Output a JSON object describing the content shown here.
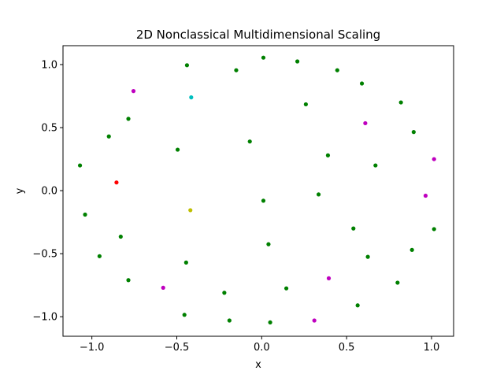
{
  "chart_data": {
    "type": "scatter",
    "title": "2D Nonclassical Multidimensional Scaling",
    "xlabel": "x",
    "ylabel": "y",
    "xlim": [
      -1.17,
      1.13
    ],
    "ylim": [
      -1.155,
      1.15
    ],
    "xticks": [
      -1.0,
      -0.5,
      0.0,
      0.5,
      1.0
    ],
    "xtick_labels": [
      "−1.0",
      "−0.5",
      "0.0",
      "0.5",
      "1.0"
    ],
    "yticks": [
      -1.0,
      -0.5,
      0.0,
      0.5,
      1.0
    ],
    "ytick_labels": [
      "−1.0",
      "−0.5",
      "0.0",
      "0.5",
      "1.0"
    ],
    "grid": false,
    "legend": "none",
    "colors": {
      "g": "#008000",
      "m": "#bf00bf",
      "r": "#ff0000",
      "c": "#00bfbf",
      "y": "#bfbf00"
    },
    "points": [
      {
        "x": 0.01,
        "y": 1.055,
        "color": "g"
      },
      {
        "x": 0.21,
        "y": 1.025,
        "color": "g"
      },
      {
        "x": -0.44,
        "y": 0.995,
        "color": "g"
      },
      {
        "x": -0.15,
        "y": 0.955,
        "color": "g"
      },
      {
        "x": 0.445,
        "y": 0.955,
        "color": "g"
      },
      {
        "x": 0.59,
        "y": 0.85,
        "color": "g"
      },
      {
        "x": -0.755,
        "y": 0.79,
        "color": "m"
      },
      {
        "x": -0.415,
        "y": 0.74,
        "color": "c"
      },
      {
        "x": 0.82,
        "y": 0.7,
        "color": "g"
      },
      {
        "x": 0.26,
        "y": 0.685,
        "color": "g"
      },
      {
        "x": -0.785,
        "y": 0.57,
        "color": "g"
      },
      {
        "x": 0.61,
        "y": 0.535,
        "color": "m"
      },
      {
        "x": 0.895,
        "y": 0.465,
        "color": "g"
      },
      {
        "x": -0.9,
        "y": 0.43,
        "color": "g"
      },
      {
        "x": -0.07,
        "y": 0.39,
        "color": "g"
      },
      {
        "x": -0.495,
        "y": 0.325,
        "color": "g"
      },
      {
        "x": 0.39,
        "y": 0.28,
        "color": "g"
      },
      {
        "x": 1.015,
        "y": 0.25,
        "color": "m"
      },
      {
        "x": -1.07,
        "y": 0.2,
        "color": "g"
      },
      {
        "x": 0.67,
        "y": 0.2,
        "color": "g"
      },
      {
        "x": -0.855,
        "y": 0.065,
        "color": "r"
      },
      {
        "x": 0.335,
        "y": -0.03,
        "color": "g"
      },
      {
        "x": 0.965,
        "y": -0.04,
        "color": "m"
      },
      {
        "x": 0.01,
        "y": -0.08,
        "color": "g"
      },
      {
        "x": -0.42,
        "y": -0.155,
        "color": "y"
      },
      {
        "x": -1.04,
        "y": -0.19,
        "color": "g"
      },
      {
        "x": 0.54,
        "y": -0.3,
        "color": "g"
      },
      {
        "x": 1.015,
        "y": -0.305,
        "color": "g"
      },
      {
        "x": -0.83,
        "y": -0.365,
        "color": "g"
      },
      {
        "x": 0.04,
        "y": -0.425,
        "color": "g"
      },
      {
        "x": 0.885,
        "y": -0.47,
        "color": "g"
      },
      {
        "x": -0.955,
        "y": -0.52,
        "color": "g"
      },
      {
        "x": 0.625,
        "y": -0.525,
        "color": "g"
      },
      {
        "x": -0.445,
        "y": -0.57,
        "color": "g"
      },
      {
        "x": 0.395,
        "y": -0.695,
        "color": "m"
      },
      {
        "x": -0.785,
        "y": -0.71,
        "color": "g"
      },
      {
        "x": 0.8,
        "y": -0.73,
        "color": "g"
      },
      {
        "x": -0.58,
        "y": -0.77,
        "color": "m"
      },
      {
        "x": 0.145,
        "y": -0.775,
        "color": "g"
      },
      {
        "x": -0.22,
        "y": -0.81,
        "color": "g"
      },
      {
        "x": 0.565,
        "y": -0.91,
        "color": "g"
      },
      {
        "x": -0.455,
        "y": -0.985,
        "color": "g"
      },
      {
        "x": -0.19,
        "y": -1.03,
        "color": "g"
      },
      {
        "x": 0.31,
        "y": -1.03,
        "color": "m"
      },
      {
        "x": 0.05,
        "y": -1.045,
        "color": "g"
      }
    ]
  }
}
